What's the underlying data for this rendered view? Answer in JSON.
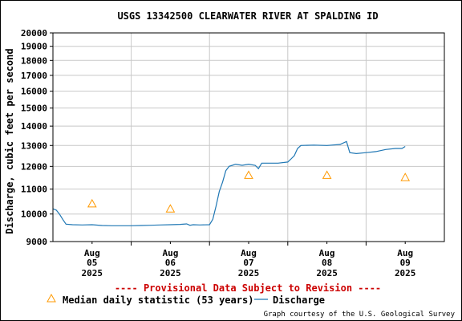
{
  "chart_data": {
    "type": "line",
    "title": "USGS 13342500 CLEARWATER RIVER AT SPALDING ID",
    "ylabel": "Discharge, cubic feet per second",
    "ylim": [
      9000,
      20000
    ],
    "y_scale": "log",
    "y_ticks": [
      9000,
      10000,
      11000,
      12000,
      13000,
      14000,
      15000,
      16000,
      17000,
      18000,
      19000,
      20000
    ],
    "y_tick_labels": [
      "9000",
      "10000",
      "11000",
      "12000",
      "13000",
      "14000",
      "15000",
      "16000",
      "17000",
      "18000",
      "19000",
      "20000"
    ],
    "xlim": [
      "2025-08-05T00:00",
      "2025-08-10T00:00"
    ],
    "x_ticks": [
      {
        "at": "2025-08-05T12:00",
        "month": "Aug",
        "day": "05",
        "year": "2025"
      },
      {
        "at": "2025-08-06T12:00",
        "month": "Aug",
        "day": "06",
        "year": "2025"
      },
      {
        "at": "2025-08-07T12:00",
        "month": "Aug",
        "day": "07",
        "year": "2025"
      },
      {
        "at": "2025-08-08T12:00",
        "month": "Aug",
        "day": "08",
        "year": "2025"
      },
      {
        "at": "2025-08-09T12:00",
        "month": "Aug",
        "day": "09",
        "year": "2025"
      }
    ],
    "grid": true,
    "series": [
      {
        "name": "Discharge",
        "color": "#1f77b4",
        "points": [
          [
            "2025-08-05T00:00",
            10200
          ],
          [
            "2025-08-05T01:00",
            10150
          ],
          [
            "2025-08-05T02:00",
            10000
          ],
          [
            "2025-08-05T03:00",
            9800
          ],
          [
            "2025-08-05T04:00",
            9620
          ],
          [
            "2025-08-05T06:00",
            9600
          ],
          [
            "2025-08-05T09:00",
            9590
          ],
          [
            "2025-08-05T12:00",
            9600
          ],
          [
            "2025-08-05T15:00",
            9570
          ],
          [
            "2025-08-05T18:00",
            9560
          ],
          [
            "2025-08-05T21:00",
            9560
          ],
          [
            "2025-08-06T00:00",
            9560
          ],
          [
            "2025-08-06T03:00",
            9570
          ],
          [
            "2025-08-06T06:00",
            9580
          ],
          [
            "2025-08-06T09:00",
            9590
          ],
          [
            "2025-08-06T12:00",
            9600
          ],
          [
            "2025-08-06T15:00",
            9610
          ],
          [
            "2025-08-06T17:00",
            9630
          ],
          [
            "2025-08-06T18:00",
            9580
          ],
          [
            "2025-08-06T19:00",
            9600
          ],
          [
            "2025-08-06T21:00",
            9590
          ],
          [
            "2025-08-07T00:00",
            9600
          ],
          [
            "2025-08-07T01:00",
            9800
          ],
          [
            "2025-08-07T02:00",
            10300
          ],
          [
            "2025-08-07T03:00",
            10900
          ],
          [
            "2025-08-07T04:00",
            11300
          ],
          [
            "2025-08-07T05:00",
            11800
          ],
          [
            "2025-08-07T06:00",
            12000
          ],
          [
            "2025-08-07T07:00",
            12050
          ],
          [
            "2025-08-07T08:00",
            12100
          ],
          [
            "2025-08-07T10:00",
            12050
          ],
          [
            "2025-08-07T12:00",
            12100
          ],
          [
            "2025-08-07T14:00",
            12050
          ],
          [
            "2025-08-07T15:00",
            11900
          ],
          [
            "2025-08-07T16:00",
            12150
          ],
          [
            "2025-08-07T18:00",
            12150
          ],
          [
            "2025-08-07T21:00",
            12150
          ],
          [
            "2025-08-08T00:00",
            12200
          ],
          [
            "2025-08-08T01:00",
            12350
          ],
          [
            "2025-08-08T02:00",
            12500
          ],
          [
            "2025-08-08T03:00",
            12850
          ],
          [
            "2025-08-08T04:00",
            13000
          ],
          [
            "2025-08-08T08:00",
            13020
          ],
          [
            "2025-08-08T12:00",
            13000
          ],
          [
            "2025-08-08T16:00",
            13050
          ],
          [
            "2025-08-08T18:00",
            13200
          ],
          [
            "2025-08-08T19:00",
            12650
          ],
          [
            "2025-08-08T21:00",
            12600
          ],
          [
            "2025-08-09T00:00",
            12650
          ],
          [
            "2025-08-09T03:00",
            12700
          ],
          [
            "2025-08-09T06:00",
            12800
          ],
          [
            "2025-08-09T09:00",
            12850
          ],
          [
            "2025-08-09T11:00",
            12850
          ],
          [
            "2025-08-09T12:00",
            12950
          ]
        ]
      },
      {
        "name": "Median daily statistic (53 years)",
        "color": "#ff9900",
        "marker": "triangle",
        "points": [
          [
            "2025-08-05T12:00",
            10400
          ],
          [
            "2025-08-06T12:00",
            10200
          ],
          [
            "2025-08-07T12:00",
            11600
          ],
          [
            "2025-08-08T12:00",
            11600
          ],
          [
            "2025-08-09T12:00",
            11500
          ]
        ]
      }
    ],
    "legend": [
      {
        "symbol": "triangle",
        "label": "Median daily statistic (53 years)"
      },
      {
        "symbol": "line",
        "label": "Discharge"
      }
    ],
    "legend_position": "bottom",
    "notes": {
      "provisional": "---- Provisional Data Subject to Revision ----",
      "credit": "Graph courtesy of the U.S. Geological Survey"
    },
    "colors": {
      "axis": "#000000",
      "grid": "#c8c8c8",
      "provisional": "#cc0000",
      "discharge": "#1f77b4",
      "median": "#ff9900"
    }
  }
}
